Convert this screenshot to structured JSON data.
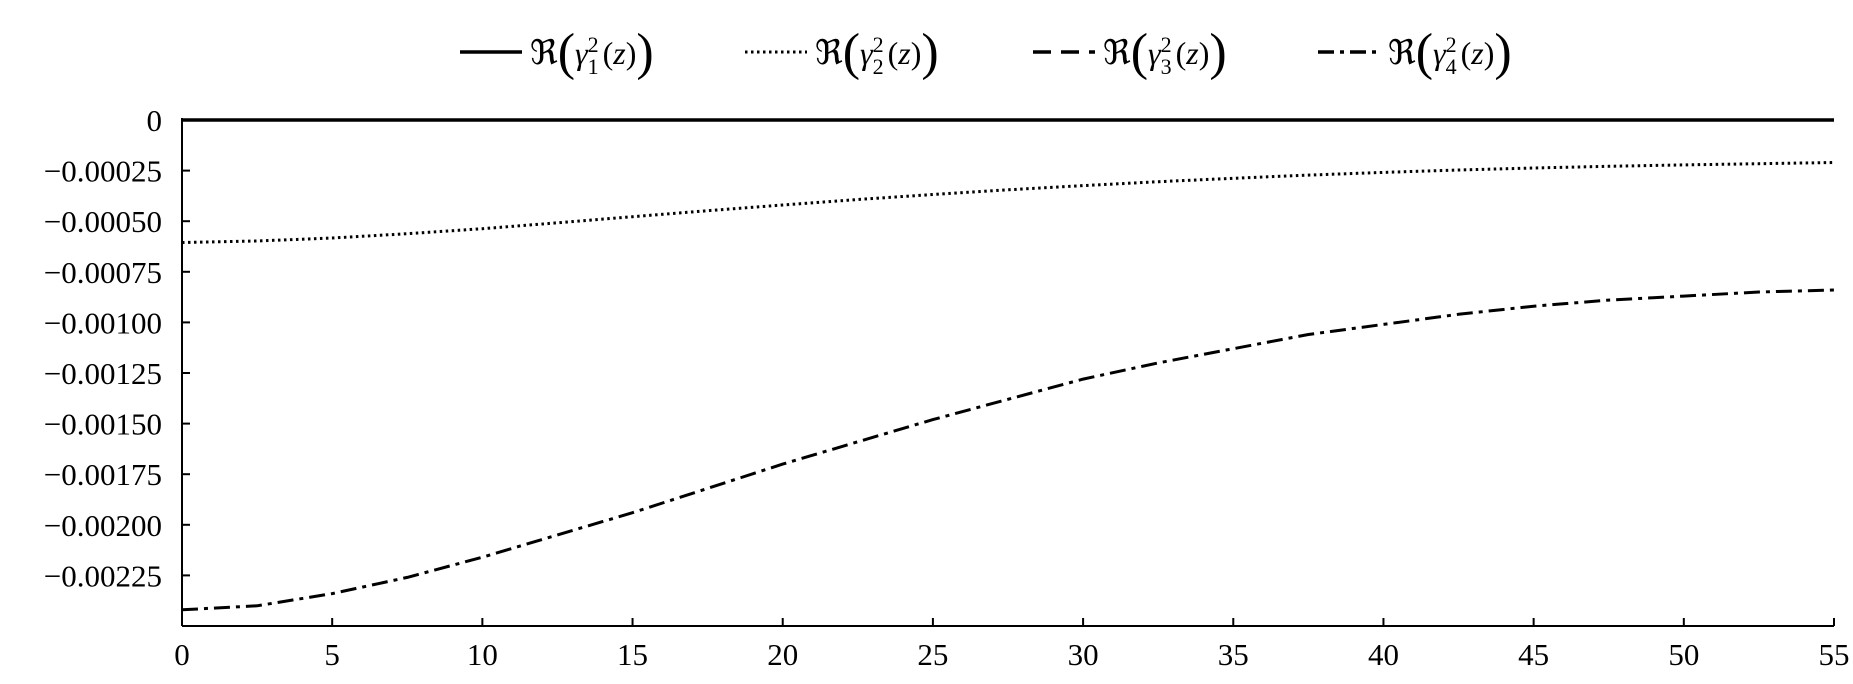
{
  "chart_data": {
    "type": "line",
    "title": "",
    "xlabel": "",
    "ylabel": "",
    "xlim": [
      0,
      55
    ],
    "ylim": [
      -0.0025,
      0
    ],
    "grid": false,
    "legend_position": "top-center",
    "x_ticks": [
      0,
      5,
      10,
      15,
      20,
      25,
      30,
      35,
      40,
      45,
      50,
      55
    ],
    "x_tick_labels": [
      "0",
      "5",
      "10",
      "15",
      "20",
      "25",
      "30",
      "35",
      "40",
      "45",
      "50",
      "55"
    ],
    "y_ticks": [
      0,
      -0.00025,
      -0.0005,
      -0.00075,
      -0.001,
      -0.00125,
      -0.0015,
      -0.00175,
      -0.002,
      -0.00225
    ],
    "y_tick_labels": [
      "0",
      "−0.00025",
      "−0.00050",
      "−0.00075",
      "−0.00100",
      "−0.00125",
      "−0.00150",
      "−0.00175",
      "−0.00200",
      "−0.00225"
    ],
    "x": [
      0,
      2.5,
      5,
      7.5,
      10,
      12.5,
      15,
      17.5,
      20,
      22.5,
      25,
      27.5,
      30,
      32.5,
      35,
      37.5,
      40,
      42.5,
      45,
      47.5,
      50,
      52.5,
      55
    ],
    "series": [
      {
        "name": "ℜ(γ₁²(z))",
        "legend_sub": "1",
        "style": "solid",
        "values": [
          0,
          0,
          0,
          0,
          0,
          0,
          0,
          0,
          0,
          0,
          0,
          0,
          0,
          0,
          0,
          0,
          0,
          0,
          0,
          0,
          0,
          0,
          0
        ]
      },
      {
        "name": "ℜ(γ₂²(z))",
        "legend_sub": "2",
        "style": "dotted",
        "values": [
          -0.000605,
          -0.000598,
          -0.000583,
          -0.000562,
          -0.000537,
          -0.000508,
          -0.000478,
          -0.000448,
          -0.00042,
          -0.000393,
          -0.000368,
          -0.000345,
          -0.000324,
          -0.000305,
          -0.000288,
          -0.000272,
          -0.000259,
          -0.000247,
          -0.000237,
          -0.000229,
          -0.000222,
          -0.000216,
          -0.00021
        ]
      },
      {
        "name": "ℜ(γ₃²(z))",
        "legend_sub": "3",
        "style": "dashed",
        "values": [
          0,
          0,
          0,
          0,
          0,
          0,
          0,
          0,
          0,
          0,
          0,
          0,
          0,
          0,
          0,
          0,
          0,
          0,
          0,
          0,
          0,
          0,
          0
        ]
      },
      {
        "name": "ℜ(γ₄²(z))",
        "legend_sub": "4",
        "style": "dashdot",
        "values": [
          -0.00242,
          -0.0024,
          -0.00234,
          -0.00226,
          -0.00216,
          -0.00205,
          -0.00194,
          -0.00182,
          -0.0017,
          -0.00159,
          -0.00148,
          -0.00138,
          -0.00128,
          -0.0012,
          -0.00113,
          -0.00106,
          -0.00101,
          -0.00096,
          -0.00092,
          -0.00089,
          -0.00087,
          -0.00085,
          -0.00084
        ]
      }
    ]
  }
}
